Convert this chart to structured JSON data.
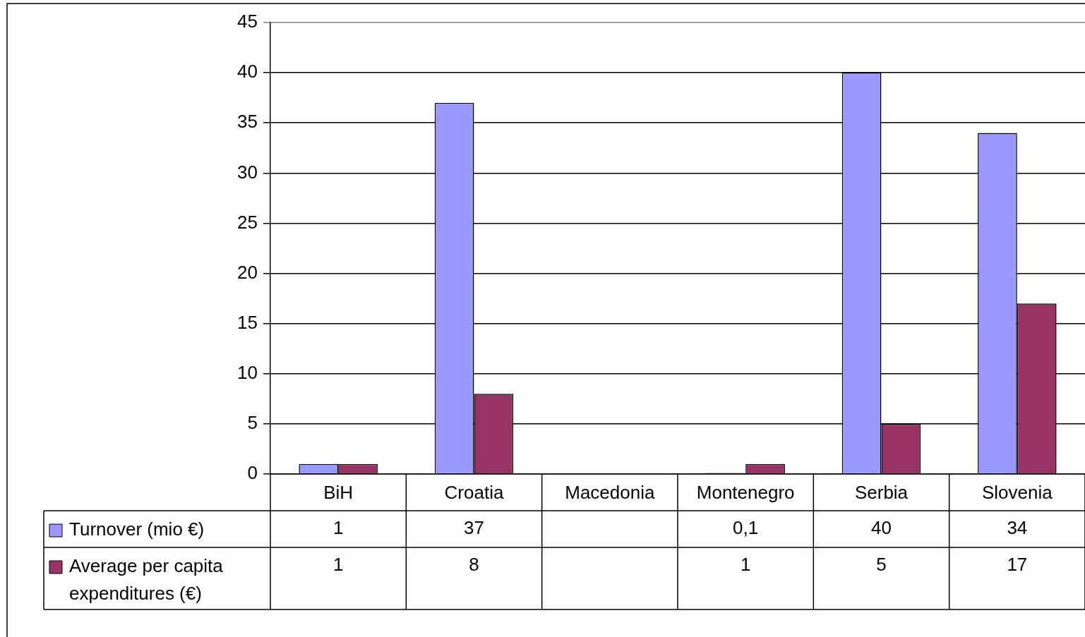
{
  "chart_data": {
    "type": "bar",
    "categories": [
      "BiH",
      "Croatia",
      "Macedonia",
      "Montenegro",
      "Serbia",
      "Slovenia"
    ],
    "series": [
      {
        "name": "Turnover (mio €)",
        "color": "#9999ff",
        "values": [
          1,
          37,
          null,
          0.1,
          40,
          34
        ],
        "value_labels": [
          "1",
          "37",
          null,
          "0,1",
          "40",
          "34"
        ]
      },
      {
        "name": "Average per capita expenditures (€)",
        "color": "#993366",
        "values": [
          1,
          8,
          null,
          1,
          5,
          17
        ],
        "value_labels": [
          "1",
          "8",
          null,
          "1",
          "5",
          "17"
        ]
      }
    ],
    "ylim": [
      0,
      45
    ],
    "yticks": [
      0,
      5,
      10,
      15,
      20,
      25,
      30,
      35,
      40,
      45
    ],
    "grid": "y",
    "legend": "bottom"
  }
}
